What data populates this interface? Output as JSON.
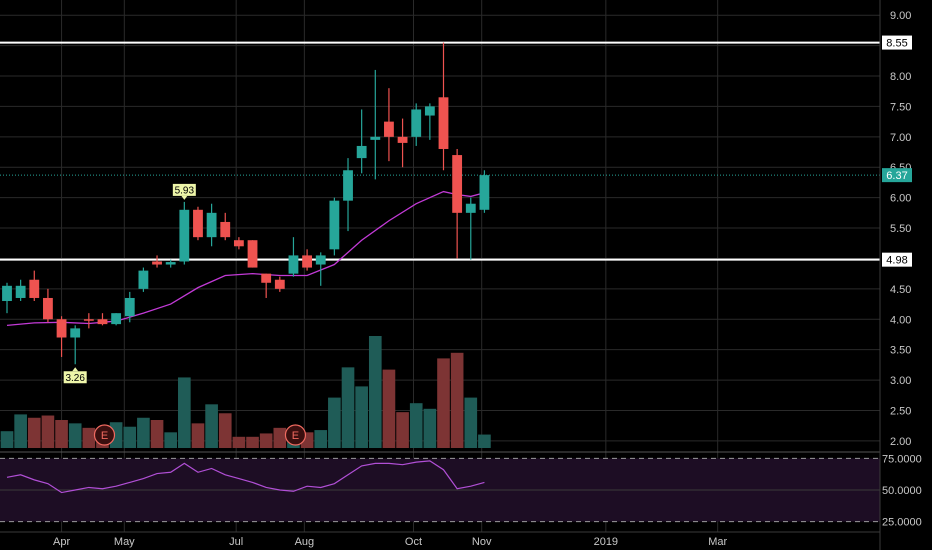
{
  "chart_data": {
    "type": "candlestick",
    "price_axis": {
      "min": 1.85,
      "max": 9.25,
      "ticks": [
        "9.00",
        "8.50",
        "8.00",
        "7.50",
        "7.00",
        "6.50",
        "6.00",
        "5.50",
        "5.00",
        "4.50",
        "4.00",
        "3.50",
        "3.00",
        "2.50",
        "2.00"
      ]
    },
    "rsi_axis": {
      "min": 20,
      "max": 80,
      "ticks": [
        "75.0000",
        "50.0000",
        "25.0000"
      ]
    },
    "x_labels": [
      {
        "label": "Apr",
        "week": 4
      },
      {
        "label": "May",
        "week": 8.6
      },
      {
        "label": "Jul",
        "week": 16.8
      },
      {
        "label": "Aug",
        "week": 21.8
      },
      {
        "label": "Oct",
        "week": 29.8
      },
      {
        "label": "Nov",
        "week": 34.8
      },
      {
        "label": "2019",
        "week": 43.9
      },
      {
        "label": "Mar",
        "week": 52.1
      }
    ],
    "weeks_visible": 64.5,
    "candles": [
      {
        "w": 0,
        "o": 4.3,
        "h": 4.6,
        "l": 4.1,
        "c": 4.55
      },
      {
        "w": 1,
        "o": 4.35,
        "h": 4.65,
        "l": 4.3,
        "c": 4.55
      },
      {
        "w": 2,
        "o": 4.65,
        "h": 4.8,
        "l": 4.3,
        "c": 4.35
      },
      {
        "w": 3,
        "o": 4.35,
        "h": 4.5,
        "l": 3.95,
        "c": 4.0
      },
      {
        "w": 4,
        "o": 4.0,
        "h": 4.05,
        "l": 3.38,
        "c": 3.7
      },
      {
        "w": 5,
        "o": 3.7,
        "h": 3.9,
        "l": 3.26,
        "c": 3.85
      },
      {
        "w": 6,
        "o": 4.0,
        "h": 4.1,
        "l": 3.85,
        "c": 3.98
      },
      {
        "w": 7,
        "o": 4.0,
        "h": 4.1,
        "l": 3.9,
        "c": 3.92
      },
      {
        "w": 8,
        "o": 3.92,
        "h": 4.1,
        "l": 3.9,
        "c": 4.1
      },
      {
        "w": 9,
        "o": 4.05,
        "h": 4.45,
        "l": 3.95,
        "c": 4.35
      },
      {
        "w": 10,
        "o": 4.5,
        "h": 4.85,
        "l": 4.45,
        "c": 4.8
      },
      {
        "w": 11,
        "o": 4.95,
        "h": 5.05,
        "l": 4.85,
        "c": 4.9
      },
      {
        "w": 12,
        "o": 4.9,
        "h": 4.98,
        "l": 4.85,
        "c": 4.94
      },
      {
        "w": 13,
        "o": 4.95,
        "h": 5.93,
        "l": 4.9,
        "c": 5.8
      },
      {
        "w": 14,
        "o": 5.8,
        "h": 5.85,
        "l": 5.3,
        "c": 5.35
      },
      {
        "w": 15,
        "o": 5.35,
        "h": 5.9,
        "l": 5.2,
        "c": 5.75
      },
      {
        "w": 16,
        "o": 5.6,
        "h": 5.75,
        "l": 5.3,
        "c": 5.35
      },
      {
        "w": 17,
        "o": 5.3,
        "h": 5.35,
        "l": 5.15,
        "c": 5.2
      },
      {
        "w": 18,
        "o": 5.3,
        "h": 5.3,
        "l": 4.85,
        "c": 4.85
      },
      {
        "w": 19,
        "o": 4.75,
        "h": 4.75,
        "l": 4.35,
        "c": 4.6
      },
      {
        "w": 20,
        "o": 4.65,
        "h": 4.7,
        "l": 4.45,
        "c": 4.5
      },
      {
        "w": 21,
        "o": 4.75,
        "h": 5.35,
        "l": 4.7,
        "c": 5.05
      },
      {
        "w": 22,
        "o": 5.05,
        "h": 5.15,
        "l": 4.8,
        "c": 4.85
      },
      {
        "w": 23,
        "o": 4.9,
        "h": 5.1,
        "l": 4.55,
        "c": 5.05
      },
      {
        "w": 24,
        "o": 5.15,
        "h": 6.0,
        "l": 5.05,
        "c": 5.95
      },
      {
        "w": 25,
        "o": 5.95,
        "h": 6.65,
        "l": 5.45,
        "c": 6.45
      },
      {
        "w": 26,
        "o": 6.65,
        "h": 7.45,
        "l": 6.4,
        "c": 6.85
      },
      {
        "w": 27,
        "o": 6.95,
        "h": 8.1,
        "l": 6.3,
        "c": 7.0
      },
      {
        "w": 28,
        "o": 7.25,
        "h": 7.8,
        "l": 6.6,
        "c": 7.0
      },
      {
        "w": 29,
        "o": 7.0,
        "h": 7.3,
        "l": 6.5,
        "c": 6.9
      },
      {
        "w": 30,
        "o": 7.0,
        "h": 7.55,
        "l": 6.85,
        "c": 7.45
      },
      {
        "w": 31,
        "o": 7.35,
        "h": 7.55,
        "l": 6.95,
        "c": 7.5
      },
      {
        "w": 32,
        "o": 7.65,
        "h": 8.55,
        "l": 6.45,
        "c": 6.8
      },
      {
        "w": 33,
        "o": 6.7,
        "h": 6.8,
        "l": 5.0,
        "c": 5.75
      },
      {
        "w": 34,
        "o": 5.75,
        "h": 6.0,
        "l": 4.98,
        "c": 5.9
      },
      {
        "w": 35,
        "o": 5.8,
        "h": 6.45,
        "l": 5.75,
        "c": 6.37
      }
    ],
    "sma": [
      {
        "w": 0,
        "v": 3.9
      },
      {
        "w": 2,
        "v": 3.94
      },
      {
        "w": 4,
        "v": 3.95
      },
      {
        "w": 6,
        "v": 3.93
      },
      {
        "w": 8,
        "v": 3.97
      },
      {
        "w": 10,
        "v": 4.1
      },
      {
        "w": 12,
        "v": 4.25
      },
      {
        "w": 14,
        "v": 4.52
      },
      {
        "w": 16,
        "v": 4.72
      },
      {
        "w": 18,
        "v": 4.75
      },
      {
        "w": 20,
        "v": 4.72
      },
      {
        "w": 22,
        "v": 4.72
      },
      {
        "w": 24,
        "v": 4.9
      },
      {
        "w": 26,
        "v": 5.3
      },
      {
        "w": 28,
        "v": 5.62
      },
      {
        "w": 30,
        "v": 5.9
      },
      {
        "w": 32,
        "v": 6.1
      },
      {
        "w": 33,
        "v": 6.05
      },
      {
        "w": 34,
        "v": 6.02
      },
      {
        "w": 35,
        "v": 6.08
      }
    ],
    "volume_levels": [
      0.15,
      0.3,
      0.27,
      0.29,
      0.25,
      0.22,
      0.18,
      0.14,
      0.23,
      0.19,
      0.27,
      0.25,
      0.14,
      0.63,
      0.22,
      0.39,
      0.31,
      0.1,
      0.1,
      0.13,
      0.18,
      0.14,
      0.14,
      0.16,
      0.45,
      0.72,
      0.55,
      1.0,
      0.7,
      0.32,
      0.4,
      0.35,
      0.8,
      0.85,
      0.45,
      0.12
    ],
    "rsi": [
      60,
      62,
      58,
      55,
      48,
      50,
      52,
      51,
      53,
      56,
      59,
      63,
      64,
      71,
      64,
      67,
      62,
      59,
      56,
      52,
      50,
      49,
      53,
      52,
      55,
      62,
      69,
      71,
      71,
      70,
      72,
      73,
      66,
      51,
      53,
      56
    ],
    "levels": [
      {
        "price": 8.55,
        "label": "8.55"
      },
      {
        "price": 4.98,
        "label": "4.98"
      }
    ],
    "last_price": {
      "price": 6.37,
      "label": "6.37"
    },
    "annotations": [
      {
        "w": 13,
        "price": 5.93,
        "label": "5.93",
        "position": "above"
      },
      {
        "w": 5,
        "price": 3.26,
        "label": "3.26",
        "position": "below"
      }
    ],
    "events": [
      {
        "w": 7,
        "label": "E"
      },
      {
        "w": 21,
        "label": "E"
      }
    ],
    "colors": {
      "up": "#26a69a",
      "down": "#ef5350",
      "up_volume": "#1f5c57",
      "down_volume": "#7d3434",
      "sma": "#c23ad6",
      "rsi": "#b14fd6",
      "rsi_band": "#1d0d24",
      "level": "#ffffff",
      "grid": "#2a2a2a",
      "last_price_badge": "#26a69a",
      "annotation_bg": "#eef6a9"
    }
  }
}
